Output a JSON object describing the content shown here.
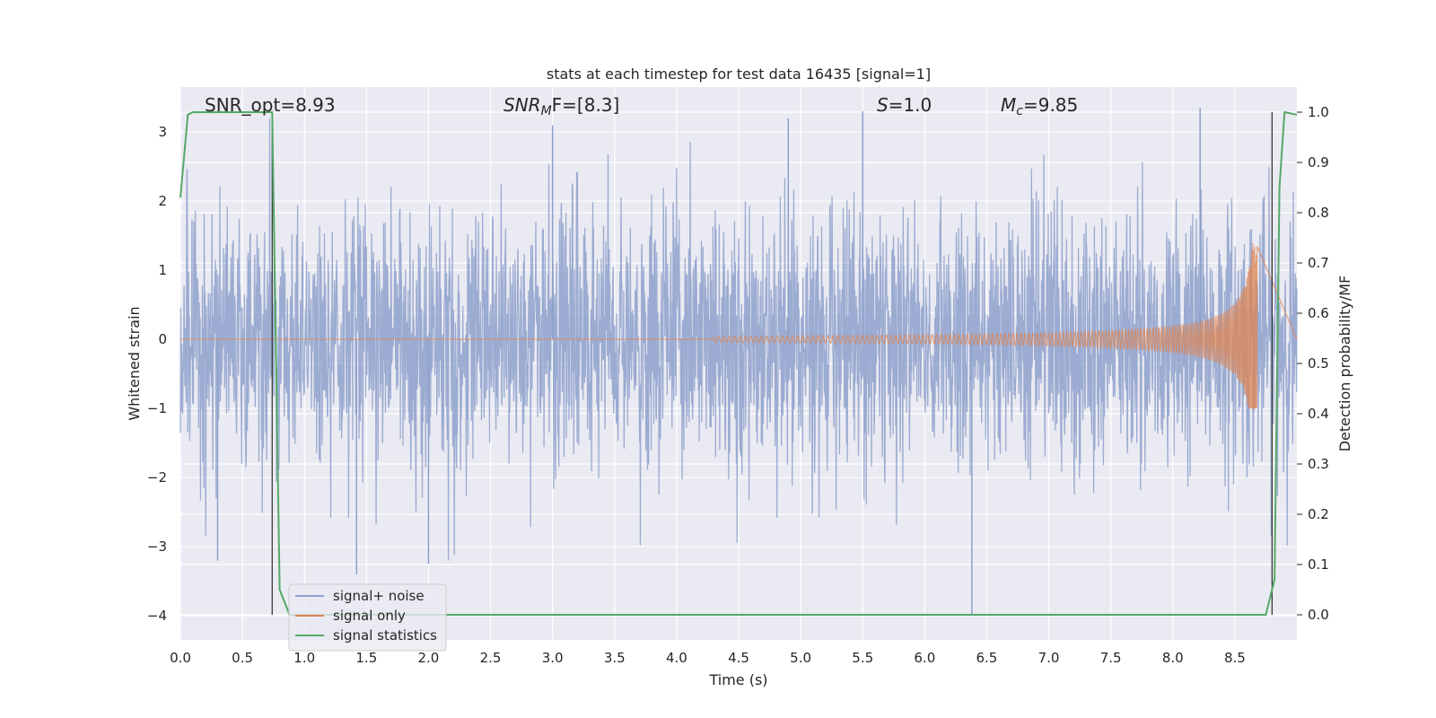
{
  "chart_data": {
    "type": "line",
    "title": "stats at each timestep for test data 16435 [signal=1]",
    "xlabel": "Time (s)",
    "ylabel_left": "Whitened strain",
    "ylabel_right": "Detection probability/MF",
    "xlim": [
      0.0,
      9.0
    ],
    "ylim_left": [
      -4.35,
      3.65
    ],
    "ylim_right": [
      -0.05,
      1.05
    ],
    "xticks": [
      "0.0",
      "0.5",
      "1.0",
      "1.5",
      "2.0",
      "2.5",
      "3.0",
      "3.5",
      "4.0",
      "4.5",
      "5.0",
      "5.5",
      "6.0",
      "6.5",
      "7.0",
      "7.5",
      "8.0",
      "8.5"
    ],
    "yticks_left": [
      "−4",
      "−3",
      "−2",
      "−1",
      "0",
      "1",
      "2",
      "3"
    ],
    "yticks_right": [
      "0.0",
      "0.1",
      "0.2",
      "0.3",
      "0.4",
      "0.5",
      "0.6",
      "0.7",
      "0.8",
      "0.9",
      "1.0"
    ],
    "grid": true,
    "legend_position": "lower-left",
    "annotations": {
      "snr_opt": "SNR_opt=8.93",
      "snr_mf_prefix": "SNR",
      "snr_mf_sub": "M",
      "snr_mf_suffix": "F=[8.3]",
      "s_var": "S",
      "s_val": "=1.0",
      "mc_var": "M",
      "mc_sub": "c",
      "mc_val": "=9.85"
    },
    "vertical_markers": [
      0.74,
      8.8
    ],
    "series": [
      {
        "name": "signal+ noise",
        "color": "#8da0cb",
        "description_values": "whitened noisy strain, roughly within [-3.4, 3.4], noise-like; sample extremes",
        "peaks": [
          [
            0.3,
            -3.2
          ],
          [
            1.42,
            -3.4
          ],
          [
            2.0,
            -3.25
          ],
          [
            3.0,
            3.1
          ],
          [
            4.9,
            3.2
          ],
          [
            5.5,
            3.3
          ],
          [
            6.38,
            -4.0
          ],
          [
            8.22,
            3.35
          ]
        ]
      },
      {
        "name": "signal only",
        "color": "#dd8452",
        "chirp_start": 4.3,
        "chirp_peak_time": 8.68,
        "chirp_peak_amplitude": 1.4,
        "chirp_min_amplitude": -1.0
      },
      {
        "name": "signal statistics",
        "color": "#55a868",
        "x": [
          0.0,
          0.06,
          0.1,
          0.2,
          0.4,
          0.6,
          0.74,
          0.8,
          0.88,
          1.0,
          2.0,
          4.0,
          6.0,
          8.0,
          8.75,
          8.82,
          8.86,
          8.9,
          9.0
        ],
        "y": [
          0.83,
          0.995,
          1.0,
          1.0,
          1.0,
          1.0,
          1.0,
          0.05,
          0.0,
          0.0,
          0.0,
          0.0,
          0.0,
          0.0,
          0.0,
          0.07,
          0.85,
          1.0,
          0.995
        ]
      }
    ]
  }
}
